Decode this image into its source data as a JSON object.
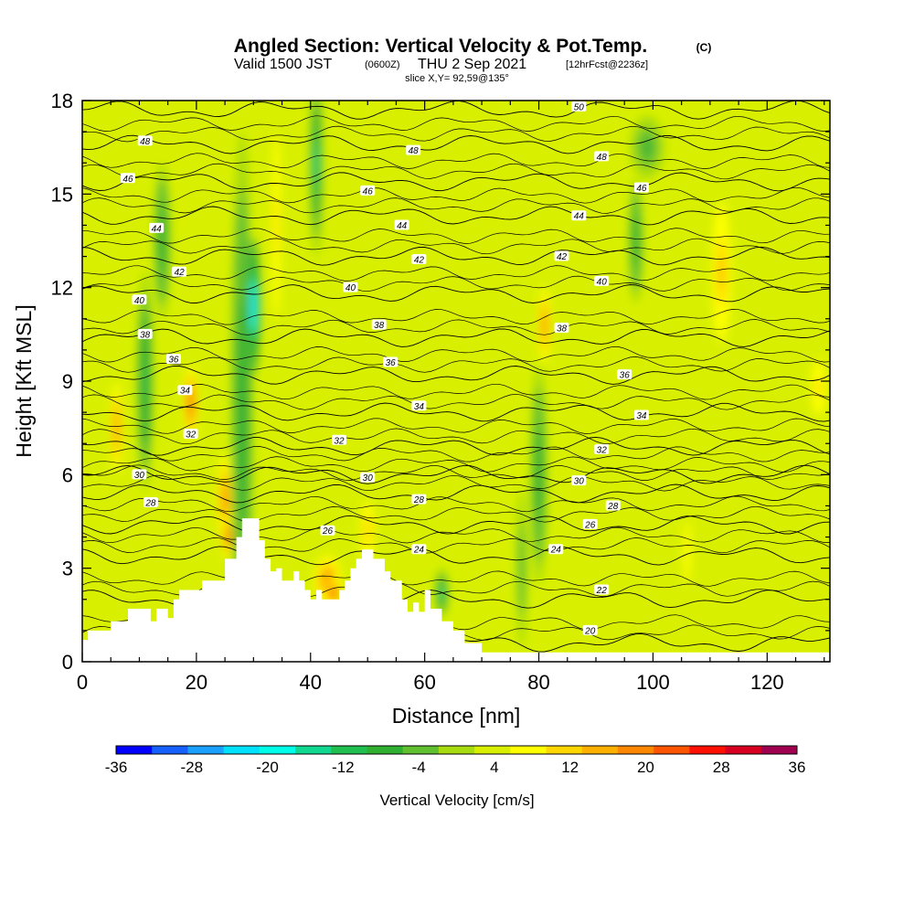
{
  "chart_data": {
    "type": "heatmap",
    "title": "Angled Section: Vertical Velocity & Pot.Temp.",
    "title_suffix": "(C)",
    "subtitle_valid": "Valid 1500 JST",
    "subtitle_utc": "(0600Z)",
    "subtitle_date": "THU 2 Sep 2021",
    "subtitle_fcst": "[12hrFcst@2236z]",
    "slice_label": "slice X,Y= 92,59@135°",
    "xlabel": "Distance [nm]",
    "ylabel": "Height [Kft MSL]",
    "xlim": [
      0,
      131
    ],
    "ylim": [
      0,
      18
    ],
    "x_ticks": [
      "0",
      "20",
      "40",
      "60",
      "80",
      "100",
      "120"
    ],
    "y_ticks": [
      "0",
      "3",
      "6",
      "9",
      "12",
      "15",
      "18"
    ],
    "colorbar": {
      "label": "Vertical Velocity [cm/s]",
      "min": -36,
      "max": 36,
      "step": 4,
      "tick_labels": [
        "-36",
        "-28",
        "-20",
        "-12",
        "-4",
        "4",
        "12",
        "20",
        "28",
        "36"
      ],
      "colors": [
        "#0000ff",
        "#1560ff",
        "#1aa0ff",
        "#00e0ff",
        "#00ffe8",
        "#10d890",
        "#20c050",
        "#30b030",
        "#60c030",
        "#a8dc10",
        "#d8f000",
        "#ffff00",
        "#ffd700",
        "#ffb000",
        "#ff8800",
        "#ff5500",
        "#ff1000",
        "#d80020",
        "#a00050",
        "#700080"
      ]
    },
    "background_level": 4,
    "contours": {
      "variable": "potential temperature (C)",
      "levels_base": [
        {
          "label": "20",
          "y": 0.6
        },
        {
          "label": "22",
          "y": 2.0
        },
        {
          "label": "24",
          "y": 3.4
        },
        {
          "label": "26",
          "y": 4.4
        },
        {
          "label": "28",
          "y": 5.4
        },
        {
          "label": "30",
          "y": 6.0
        },
        {
          "label": "32",
          "y": 6.9
        },
        {
          "label": "34",
          "y": 8.0
        },
        {
          "label": "36",
          "y": 9.2
        },
        {
          "label": "38",
          "y": 10.4
        },
        {
          "label": "40",
          "y": 11.8
        },
        {
          "label": "42",
          "y": 13.0
        },
        {
          "label": "44",
          "y": 14.3
        },
        {
          "label": "46",
          "y": 15.4
        },
        {
          "label": "48",
          "y": 16.6
        },
        {
          "label": "50",
          "y": 17.7
        }
      ],
      "labels": [
        {
          "text": "20",
          "x": 89,
          "y": 1.0
        },
        {
          "text": "22",
          "x": 91,
          "y": 2.3
        },
        {
          "text": "24",
          "x": 59,
          "y": 3.6
        },
        {
          "text": "24",
          "x": 83,
          "y": 3.6
        },
        {
          "text": "26",
          "x": 43,
          "y": 4.2
        },
        {
          "text": "26",
          "x": 89,
          "y": 4.4
        },
        {
          "text": "28",
          "x": 12,
          "y": 5.1
        },
        {
          "text": "28",
          "x": 59,
          "y": 5.2
        },
        {
          "text": "28",
          "x": 93,
          "y": 5.0
        },
        {
          "text": "30",
          "x": 10,
          "y": 6.0
        },
        {
          "text": "30",
          "x": 50,
          "y": 5.9
        },
        {
          "text": "30",
          "x": 87,
          "y": 5.8
        },
        {
          "text": "32",
          "x": 19,
          "y": 7.3
        },
        {
          "text": "32",
          "x": 45,
          "y": 7.1
        },
        {
          "text": "32",
          "x": 91,
          "y": 6.8
        },
        {
          "text": "34",
          "x": 18,
          "y": 8.7
        },
        {
          "text": "34",
          "x": 59,
          "y": 8.2
        },
        {
          "text": "34",
          "x": 98,
          "y": 7.9
        },
        {
          "text": "36",
          "x": 16,
          "y": 9.7
        },
        {
          "text": "36",
          "x": 54,
          "y": 9.6
        },
        {
          "text": "36",
          "x": 95,
          "y": 9.2
        },
        {
          "text": "38",
          "x": 11,
          "y": 10.5
        },
        {
          "text": "38",
          "x": 52,
          "y": 10.8
        },
        {
          "text": "38",
          "x": 84,
          "y": 10.7
        },
        {
          "text": "40",
          "x": 10,
          "y": 11.6
        },
        {
          "text": "40",
          "x": 47,
          "y": 12.0
        },
        {
          "text": "40",
          "x": 91,
          "y": 12.2
        },
        {
          "text": "42",
          "x": 17,
          "y": 12.5
        },
        {
          "text": "42",
          "x": 59,
          "y": 12.9
        },
        {
          "text": "42",
          "x": 84,
          "y": 13.0
        },
        {
          "text": "44",
          "x": 13,
          "y": 13.9
        },
        {
          "text": "44",
          "x": 56,
          "y": 14.0
        },
        {
          "text": "44",
          "x": 87,
          "y": 14.3
        },
        {
          "text": "46",
          "x": 8,
          "y": 15.5
        },
        {
          "text": "46",
          "x": 50,
          "y": 15.1
        },
        {
          "text": "46",
          "x": 98,
          "y": 15.2
        },
        {
          "text": "48",
          "x": 11,
          "y": 16.7
        },
        {
          "text": "48",
          "x": 58,
          "y": 16.4
        },
        {
          "text": "48",
          "x": 91,
          "y": 16.2
        },
        {
          "text": "50",
          "x": 87,
          "y": 17.8
        }
      ]
    },
    "features": [
      {
        "x": 6,
        "y": 7.5,
        "rx": 1.2,
        "ry": 1.8,
        "value": 22
      },
      {
        "x": 19,
        "y": 8.3,
        "rx": 1.2,
        "ry": 1.2,
        "value": 24
      },
      {
        "x": 25,
        "y": 5.2,
        "rx": 1.6,
        "ry": 1.8,
        "value": 22
      },
      {
        "x": 25.5,
        "y": 4.0,
        "rx": 1.0,
        "ry": 0.7,
        "value": 26
      },
      {
        "x": 28,
        "y": 8.0,
        "rx": 2.0,
        "ry": 9.0,
        "value": -8
      },
      {
        "x": 30,
        "y": 11.4,
        "rx": 1.3,
        "ry": 2.2,
        "value": -22
      },
      {
        "x": 34,
        "y": 14.0,
        "rx": 1.2,
        "ry": 5.0,
        "value": 12
      },
      {
        "x": 43,
        "y": 2.6,
        "rx": 3.0,
        "ry": 1.0,
        "value": 20
      },
      {
        "x": 44,
        "y": 2.2,
        "rx": 1.3,
        "ry": 0.5,
        "value": 30
      },
      {
        "x": 50,
        "y": 4.2,
        "rx": 1.5,
        "ry": 1.2,
        "value": 14
      },
      {
        "x": 41,
        "y": 16.0,
        "rx": 1.2,
        "ry": 3.0,
        "value": -14
      },
      {
        "x": 11,
        "y": 9.0,
        "rx": 1.5,
        "ry": 3.5,
        "value": -10
      },
      {
        "x": 14,
        "y": 13.5,
        "rx": 1.5,
        "ry": 2.5,
        "value": -8
      },
      {
        "x": 63,
        "y": 2.2,
        "rx": 1.2,
        "ry": 0.8,
        "value": -14
      },
      {
        "x": 81,
        "y": 10.8,
        "rx": 1.3,
        "ry": 1.5,
        "value": 22
      },
      {
        "x": 80,
        "y": 6.0,
        "rx": 1.5,
        "ry": 3.5,
        "value": -8
      },
      {
        "x": 97,
        "y": 13.5,
        "rx": 1.3,
        "ry": 2.0,
        "value": -8
      },
      {
        "x": 112,
        "y": 12.5,
        "rx": 2.0,
        "ry": 2.8,
        "value": 16
      },
      {
        "x": 129,
        "y": 8.8,
        "rx": 2.0,
        "ry": 1.5,
        "value": 12
      },
      {
        "x": 77,
        "y": 3.0,
        "rx": 1.0,
        "ry": 2.5,
        "value": -4
      },
      {
        "x": 106,
        "y": 3.5,
        "rx": 1.5,
        "ry": 2.5,
        "value": 10
      },
      {
        "x": 99,
        "y": 16.5,
        "rx": 3.0,
        "ry": 1.0,
        "value": -6
      }
    ],
    "terrain": [
      [
        0,
        0.0
      ],
      [
        0,
        0.7
      ],
      [
        1,
        0.7
      ],
      [
        1,
        1.0
      ],
      [
        5,
        1.0
      ],
      [
        5,
        1.3
      ],
      [
        8,
        1.3
      ],
      [
        8,
        1.7
      ],
      [
        12,
        1.7
      ],
      [
        12,
        1.3
      ],
      [
        13,
        1.3
      ],
      [
        13,
        1.7
      ],
      [
        15,
        1.7
      ],
      [
        15,
        1.4
      ],
      [
        16,
        1.4
      ],
      [
        16,
        2.0
      ],
      [
        17,
        2.0
      ],
      [
        17,
        2.3
      ],
      [
        21,
        2.3
      ],
      [
        21,
        2.6
      ],
      [
        25,
        2.6
      ],
      [
        25,
        3.3
      ],
      [
        27,
        3.3
      ],
      [
        27,
        4.0
      ],
      [
        28,
        4.0
      ],
      [
        28,
        4.6
      ],
      [
        31,
        4.6
      ],
      [
        31,
        3.9
      ],
      [
        32,
        3.9
      ],
      [
        32,
        3.3
      ],
      [
        33,
        3.3
      ],
      [
        33,
        2.9
      ],
      [
        34,
        2.9
      ],
      [
        34,
        3.0
      ],
      [
        35,
        3.0
      ],
      [
        35,
        2.6
      ],
      [
        37,
        2.6
      ],
      [
        37,
        2.9
      ],
      [
        38,
        2.9
      ],
      [
        38,
        2.6
      ],
      [
        39,
        2.6
      ],
      [
        39,
        2.3
      ],
      [
        40,
        2.3
      ],
      [
        40,
        2.0
      ],
      [
        41,
        2.0
      ],
      [
        41,
        2.3
      ],
      [
        42,
        2.3
      ],
      [
        42,
        2.0
      ],
      [
        45,
        2.0
      ],
      [
        45,
        2.3
      ],
      [
        46,
        2.3
      ],
      [
        46,
        2.6
      ],
      [
        47,
        2.6
      ],
      [
        47,
        3.0
      ],
      [
        48,
        3.0
      ],
      [
        48,
        3.3
      ],
      [
        49,
        3.3
      ],
      [
        49,
        3.6
      ],
      [
        51,
        3.6
      ],
      [
        51,
        3.3
      ],
      [
        53,
        3.3
      ],
      [
        53,
        2.9
      ],
      [
        54,
        2.9
      ],
      [
        54,
        2.6
      ],
      [
        56,
        2.6
      ],
      [
        56,
        2.0
      ],
      [
        57,
        2.0
      ],
      [
        57,
        1.6
      ],
      [
        58,
        1.6
      ],
      [
        58,
        1.9
      ],
      [
        59,
        1.9
      ],
      [
        59,
        1.6
      ],
      [
        60,
        1.6
      ],
      [
        60,
        2.3
      ],
      [
        61,
        2.3
      ],
      [
        61,
        1.7
      ],
      [
        63,
        1.7
      ],
      [
        63,
        1.3
      ],
      [
        65,
        1.3
      ],
      [
        65,
        1.0
      ],
      [
        67,
        1.0
      ],
      [
        67,
        0.6
      ],
      [
        70,
        0.6
      ],
      [
        70,
        0.3
      ],
      [
        131,
        0.3
      ],
      [
        131,
        0.0
      ]
    ]
  }
}
